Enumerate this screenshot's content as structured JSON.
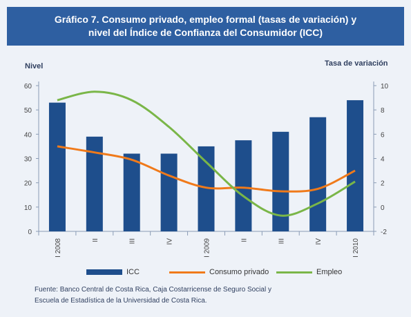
{
  "title": {
    "line1": "Gráfico 7. Consumo privado, empleo formal (tasas de  variación) y",
    "line2": "nivel del Índice de Confianza del Consumidor (ICC)"
  },
  "axis_titles": {
    "left": "Nivel",
    "right": "Tasa de variación"
  },
  "colors": {
    "bar": "#1e4e8c",
    "consumo": "#f07a1a",
    "empleo": "#7ab648",
    "title_bg": "#2e5fa1"
  },
  "legend": {
    "icc": "ICC",
    "consumo": "Consumo privado",
    "empleo": "Empleo"
  },
  "source": {
    "line1": "Fuente: Banco Central de Costa Rica, Caja Costarricense de Seguro Social  y",
    "line2": "Escuela de Estadística  de la Universidad de Costa Rica."
  },
  "chart_data": {
    "type": "bar",
    "categories": [
      "I 2008",
      "II",
      "III",
      "IV",
      "I 2009",
      "II",
      "III",
      "IV",
      "I 2010"
    ],
    "y_left": {
      "label": "Nivel",
      "lim": [
        0,
        60
      ],
      "ticks": [
        0,
        10,
        20,
        30,
        40,
        50,
        60
      ]
    },
    "y_right": {
      "label": "Tasa de variación",
      "lim": [
        -2,
        10
      ],
      "ticks": [
        -2,
        0,
        2,
        4,
        6,
        8,
        10
      ]
    },
    "series": [
      {
        "name": "ICC",
        "type": "bar",
        "axis": "left",
        "values": [
          53,
          39,
          32,
          32,
          35,
          37.5,
          41,
          47,
          54
        ]
      },
      {
        "name": "Consumo privado",
        "type": "line",
        "axis": "right",
        "values": [
          5.0,
          4.5,
          3.9,
          2.6,
          1.6,
          1.6,
          1.3,
          1.5,
          3.0
        ]
      },
      {
        "name": "Empleo",
        "type": "line",
        "axis": "right",
        "values": [
          8.8,
          9.5,
          8.8,
          6.6,
          3.7,
          0.9,
          -0.7,
          0.3,
          2.1
        ]
      }
    ],
    "legend_position": "bottom",
    "grid": false
  }
}
